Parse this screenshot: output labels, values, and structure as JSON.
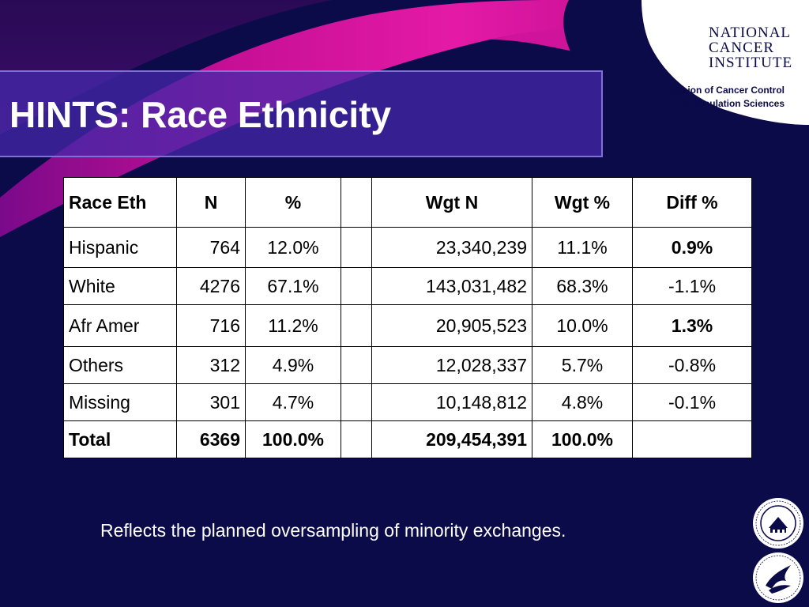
{
  "slide": {
    "title": "HINTS: Race Ethnicity",
    "footnote": "Reflects the planned oversampling of minority exchanges."
  },
  "header": {
    "nci_logo_lines": [
      "NATIONAL",
      "CANCER",
      "INSTITUTE"
    ],
    "division_line1": "Division of Cancer Control",
    "division_line2": "& Population Sciences"
  },
  "table": {
    "columns": [
      "Race Eth",
      "N",
      "%",
      "",
      "Wgt N",
      "Wgt %",
      "Diff %"
    ],
    "rows": [
      {
        "race": "Hispanic",
        "n": "764",
        "pct": "12.0%",
        "wgt_n": "23,340,239",
        "wgt_pct": "11.1%",
        "diff": "0.9%",
        "diff_bold": true
      },
      {
        "race": "White",
        "n": "4276",
        "pct": "67.1%",
        "wgt_n": "143,031,482",
        "wgt_pct": "68.3%",
        "diff": "-1.1%",
        "diff_bold": false
      },
      {
        "race": "Afr Amer",
        "n": "716",
        "pct": "11.2%",
        "wgt_n": "20,905,523",
        "wgt_pct": "10.0%",
        "diff": "1.3%",
        "diff_bold": true
      },
      {
        "race": "Others",
        "n": "312",
        "pct": "4.9%",
        "wgt_n": "12,028,337",
        "wgt_pct": "5.7%",
        "diff": "-0.8%",
        "diff_bold": false
      },
      {
        "race": "Missing",
        "n": "301",
        "pct": "4.7%",
        "wgt_n": "10,148,812",
        "wgt_pct": "4.8%",
        "diff": "-0.1%",
        "diff_bold": false
      }
    ],
    "total": {
      "race": "Total",
      "n": "6369",
      "pct": "100.0%",
      "wgt_n": "209,454,391",
      "wgt_pct": "100.0%",
      "diff": ""
    }
  },
  "colors": {
    "background": "#0b0b4a",
    "magenta_band": "#c0108f",
    "title_box": "#4628aa"
  },
  "icons": [
    "nih-seal-icon",
    "hhs-seal-icon"
  ]
}
